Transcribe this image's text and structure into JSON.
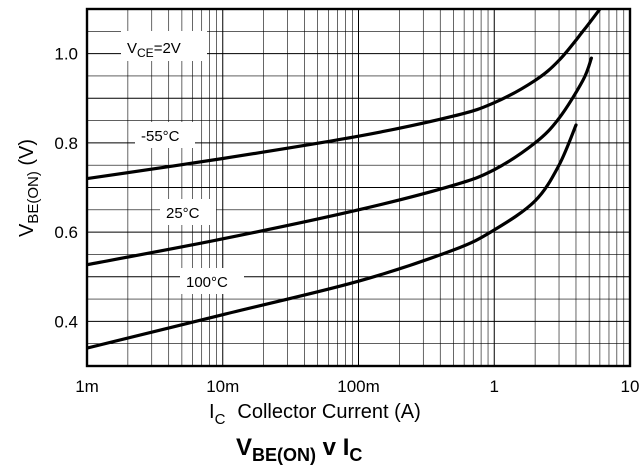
{
  "chart_data": {
    "type": "line",
    "title": "VBE(ON) v IC",
    "title_parts": {
      "main": "V",
      "main_sub": "BE(ON)",
      "mid": " v I",
      "mid_sub": "C"
    },
    "xlabel_parts": {
      "sym": "I",
      "sym_sub": "C",
      "text": "Collector Current (A)"
    },
    "ylabel_parts": {
      "sym": "V",
      "sym_sub": "BE(ON)",
      "unit": "(V)"
    },
    "x_scale": "log",
    "xlim": [
      0.001,
      10
    ],
    "ylim": [
      0.3,
      1.1
    ],
    "x_ticks": [
      {
        "value": 0.001,
        "label": "1m"
      },
      {
        "value": 0.01,
        "label": "10m"
      },
      {
        "value": 0.1,
        "label": "100m"
      },
      {
        "value": 1,
        "label": "1"
      },
      {
        "value": 10,
        "label": "10"
      }
    ],
    "y_ticks": [
      {
        "value": 0.4,
        "label": "0.4"
      },
      {
        "value": 0.6,
        "label": "0.6"
      },
      {
        "value": 0.8,
        "label": "0.8"
      },
      {
        "value": 1.0,
        "label": "1.0"
      }
    ],
    "grid": true,
    "condition": {
      "sym": "V",
      "sym_sub": "CE",
      "text": "=2V"
    },
    "series": [
      {
        "name": "-55°C",
        "points": [
          [
            0.001,
            0.72
          ],
          [
            0.01,
            0.765
          ],
          [
            0.1,
            0.815
          ],
          [
            0.5,
            0.86
          ],
          [
            1,
            0.89
          ],
          [
            2,
            0.94
          ],
          [
            3,
            0.985
          ],
          [
            4.5,
            1.05
          ],
          [
            6,
            1.1
          ]
        ]
      },
      {
        "name": "25°C",
        "points": [
          [
            0.001,
            0.527
          ],
          [
            0.01,
            0.585
          ],
          [
            0.1,
            0.65
          ],
          [
            0.5,
            0.705
          ],
          [
            1,
            0.74
          ],
          [
            2,
            0.8
          ],
          [
            3,
            0.855
          ],
          [
            4.5,
            0.94
          ],
          [
            5.2,
            0.99
          ]
        ]
      },
      {
        "name": "100°C",
        "points": [
          [
            0.001,
            0.34
          ],
          [
            0.01,
            0.415
          ],
          [
            0.1,
            0.49
          ],
          [
            0.5,
            0.56
          ],
          [
            1,
            0.605
          ],
          [
            2,
            0.67
          ],
          [
            3,
            0.75
          ],
          [
            4,
            0.84
          ]
        ]
      }
    ]
  }
}
